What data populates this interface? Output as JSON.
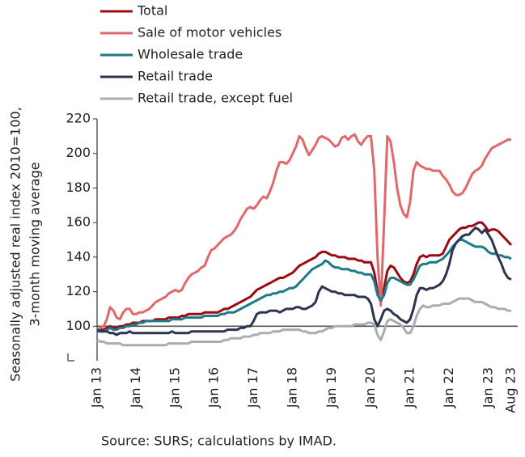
{
  "chart_data": {
    "type": "line",
    "ylabel": [
      "Seasonally adjusted real index 2010=100,",
      "3-month moving average"
    ],
    "source": "Source: SURS; calculations by IMAD.",
    "categories": [
      "Jan 13",
      null,
      null,
      null,
      null,
      null,
      null,
      null,
      null,
      null,
      null,
      null,
      "Jan 14",
      null,
      null,
      null,
      null,
      null,
      null,
      null,
      null,
      null,
      null,
      null,
      "Jan 15",
      null,
      null,
      null,
      null,
      null,
      null,
      null,
      null,
      null,
      null,
      null,
      "Jan 16",
      null,
      null,
      null,
      null,
      null,
      null,
      null,
      null,
      null,
      null,
      null,
      "Jan 17",
      null,
      null,
      null,
      null,
      null,
      null,
      null,
      null,
      null,
      null,
      null,
      "Jan 18",
      null,
      null,
      null,
      null,
      null,
      null,
      null,
      null,
      null,
      null,
      null,
      "Jan 19",
      null,
      null,
      null,
      null,
      null,
      null,
      null,
      null,
      null,
      null,
      null,
      "Jan 20",
      null,
      null,
      null,
      null,
      null,
      null,
      null,
      null,
      null,
      null,
      null,
      "Jan 21",
      null,
      null,
      null,
      null,
      null,
      null,
      null,
      null,
      null,
      null,
      null,
      "Jan 22",
      null,
      null,
      null,
      null,
      null,
      null,
      null,
      null,
      null,
      null,
      null,
      "Jan 23",
      null,
      null,
      null,
      null,
      null,
      null,
      "Aug 23"
    ],
    "ylim": [
      80,
      220
    ],
    "yticks": [
      100,
      120,
      140,
      160,
      180,
      200,
      220
    ],
    "baseline": 100,
    "grid": false,
    "legend": "top-left",
    "series": [
      {
        "name": "Total",
        "color": "#9b0a0f",
        "values": [
          98,
          98,
          98,
          99,
          100,
          99,
          99,
          100,
          100,
          101,
          101,
          102,
          102,
          102,
          103,
          103,
          103,
          103,
          104,
          104,
          104,
          104,
          105,
          105,
          105,
          105,
          106,
          106,
          107,
          107,
          107,
          107,
          107,
          108,
          108,
          108,
          108,
          108,
          109,
          110,
          110,
          111,
          112,
          113,
          114,
          115,
          116,
          117,
          119,
          121,
          122,
          123,
          124,
          125,
          126,
          127,
          128,
          128,
          129,
          130,
          131,
          133,
          135,
          136,
          137,
          138,
          139,
          140,
          142,
          143,
          143,
          142,
          141,
          141,
          140,
          140,
          140,
          139,
          139,
          139,
          138,
          138,
          137,
          137,
          137,
          131,
          120,
          114,
          122,
          132,
          135,
          134,
          131,
          128,
          126,
          125,
          126,
          130,
          136,
          140,
          141,
          140,
          141,
          141,
          141,
          141,
          142,
          146,
          150,
          152,
          154,
          156,
          157,
          157,
          158,
          158,
          159,
          160,
          160,
          158,
          155,
          156,
          156,
          155,
          153,
          151,
          149,
          147
        ]
      },
      {
        "name": "Sale of motor vehicles",
        "color": "#e0676a",
        "values": [
          98,
          99,
          100,
          104,
          111,
          109,
          105,
          104,
          108,
          110,
          110,
          107,
          107,
          108,
          108,
          109,
          110,
          112,
          114,
          115,
          116,
          117,
          119,
          120,
          121,
          120,
          121,
          125,
          128,
          130,
          131,
          132,
          134,
          135,
          140,
          144,
          145,
          147,
          149,
          151,
          152,
          153,
          155,
          158,
          162,
          165,
          168,
          169,
          168,
          170,
          173,
          175,
          174,
          178,
          183,
          190,
          195,
          195,
          194,
          196,
          200,
          204,
          210,
          208,
          203,
          199,
          202,
          205,
          209,
          210,
          209,
          208,
          206,
          204,
          205,
          209,
          210,
          208,
          210,
          211,
          207,
          205,
          208,
          210,
          210,
          190,
          140,
          112,
          160,
          210,
          207,
          195,
          180,
          170,
          165,
          163,
          172,
          190,
          195,
          193,
          192,
          191,
          191,
          190,
          190,
          190,
          187,
          185,
          182,
          178,
          176,
          176,
          177,
          180,
          184,
          188,
          190,
          191,
          193,
          197,
          200,
          203,
          204,
          205,
          206,
          207,
          208,
          208
        ]
      },
      {
        "name": "Wholesale trade",
        "color": "#1c7a8c",
        "values": [
          97,
          97,
          97,
          98,
          99,
          98,
          98,
          99,
          99,
          100,
          100,
          101,
          101,
          102,
          102,
          103,
          103,
          103,
          103,
          103,
          103,
          103,
          103,
          104,
          104,
          104,
          104,
          105,
          105,
          105,
          105,
          105,
          105,
          106,
          106,
          106,
          106,
          106,
          107,
          107,
          108,
          108,
          108,
          109,
          110,
          111,
          112,
          113,
          114,
          115,
          116,
          117,
          118,
          118,
          119,
          119,
          120,
          120,
          121,
          122,
          122,
          123,
          125,
          127,
          129,
          131,
          133,
          134,
          135,
          136,
          138,
          137,
          135,
          134,
          134,
          133,
          133,
          133,
          132,
          132,
          131,
          131,
          130,
          130,
          130,
          126,
          118,
          115,
          118,
          125,
          128,
          128,
          127,
          126,
          125,
          124,
          124,
          127,
          131,
          135,
          136,
          136,
          137,
          137,
          137,
          138,
          139,
          141,
          143,
          146,
          148,
          150,
          150,
          149,
          148,
          147,
          146,
          146,
          146,
          145,
          143,
          142,
          142,
          141,
          141,
          140,
          140,
          139
        ]
      },
      {
        "name": "Retail trade",
        "color": "#2c3452",
        "values": [
          98,
          97,
          97,
          97,
          96,
          96,
          95,
          96,
          96,
          96,
          97,
          96,
          96,
          96,
          96,
          96,
          96,
          96,
          96,
          96,
          96,
          96,
          96,
          97,
          96,
          96,
          96,
          96,
          96,
          97,
          97,
          97,
          97,
          97,
          97,
          97,
          97,
          97,
          97,
          97,
          98,
          98,
          98,
          98,
          99,
          99,
          100,
          100,
          103,
          107,
          108,
          108,
          108,
          109,
          109,
          109,
          108,
          109,
          110,
          110,
          110,
          111,
          111,
          110,
          110,
          111,
          112,
          114,
          120,
          123,
          122,
          121,
          120,
          120,
          119,
          119,
          118,
          118,
          118,
          118,
          117,
          117,
          117,
          116,
          113,
          104,
          100,
          104,
          109,
          110,
          109,
          107,
          106,
          104,
          103,
          102,
          104,
          110,
          118,
          122,
          122,
          121,
          122,
          122,
          123,
          124,
          126,
          130,
          136,
          144,
          148,
          150,
          152,
          153,
          153,
          155,
          157,
          156,
          154,
          156,
          153,
          150,
          145,
          140,
          136,
          131,
          128,
          127
        ]
      },
      {
        "name": "Retail trade, except fuel",
        "color": "#a8adb2",
        "values": [
          92,
          91,
          91,
          90,
          90,
          90,
          90,
          90,
          89,
          89,
          89,
          89,
          89,
          89,
          89,
          89,
          89,
          89,
          89,
          89,
          89,
          89,
          90,
          90,
          90,
          90,
          90,
          90,
          90,
          91,
          91,
          91,
          91,
          91,
          91,
          91,
          91,
          91,
          91,
          92,
          92,
          93,
          93,
          93,
          93,
          94,
          94,
          94,
          95,
          95,
          96,
          96,
          96,
          96,
          97,
          97,
          97,
          98,
          98,
          98,
          98,
          98,
          98,
          97,
          97,
          96,
          96,
          96,
          97,
          97,
          98,
          99,
          99,
          100,
          100,
          100,
          100,
          100,
          100,
          101,
          101,
          101,
          101,
          102,
          102,
          101,
          95,
          92,
          97,
          103,
          104,
          103,
          102,
          101,
          99,
          96,
          96,
          100,
          106,
          110,
          112,
          111,
          111,
          112,
          112,
          112,
          113,
          113,
          113,
          114,
          115,
          116,
          116,
          116,
          116,
          115,
          114,
          114,
          114,
          113,
          112,
          111,
          111,
          110,
          110,
          110,
          109,
          109
        ]
      }
    ]
  }
}
